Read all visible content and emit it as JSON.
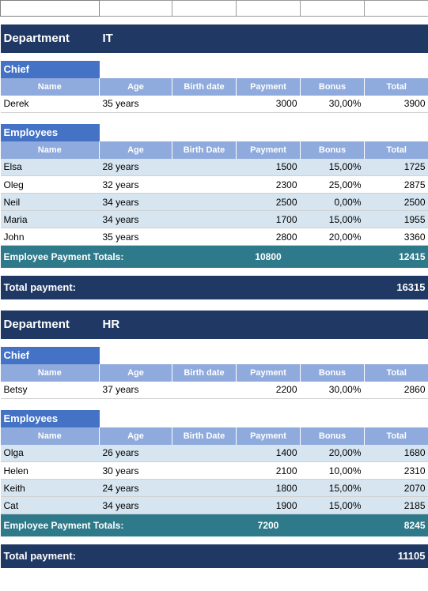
{
  "labels": {
    "department": "Department",
    "chief": "Chief",
    "employees": "Employees",
    "emp_totals": "Employee Payment Totals:",
    "total_payment": "Total payment:"
  },
  "headers_chief": {
    "name": "Name",
    "age": "Age",
    "birth": "Birth date",
    "payment": "Payment",
    "bonus": "Bonus",
    "total": "Total"
  },
  "headers_emp": {
    "name": "Name",
    "age": "Age",
    "birth": "Birth Date",
    "payment": "Payment",
    "bonus": "Bonus",
    "total": "Total"
  },
  "depts": [
    {
      "name": "IT",
      "chief": {
        "name": "Derek",
        "age": "35 years",
        "birth": "",
        "payment": "3000",
        "bonus": "30,00%",
        "total": "3900"
      },
      "employees": [
        {
          "name": "Elsa",
          "age": "28 years",
          "birth": "",
          "payment": "1500",
          "bonus": "15,00%",
          "total": "1725"
        },
        {
          "name": "Oleg",
          "age": "32 years",
          "birth": "",
          "payment": "2300",
          "bonus": "25,00%",
          "total": "2875"
        },
        {
          "name": "Neil",
          "age": "34 years",
          "birth": "",
          "payment": "2500",
          "bonus": "0,00%",
          "total": "2500"
        },
        {
          "name": "Maria",
          "age": "34 years",
          "birth": "",
          "payment": "1700",
          "bonus": "15,00%",
          "total": "1955"
        },
        {
          "name": "John",
          "age": "35 years",
          "birth": "",
          "payment": "2800",
          "bonus": "20,00%",
          "total": "3360"
        }
      ],
      "emp_payment_sum": "10800",
      "emp_total_sum": "12415",
      "total_payment": "16315"
    },
    {
      "name": "HR",
      "chief": {
        "name": "Betsy",
        "age": "37 years",
        "birth": "",
        "payment": "2200",
        "bonus": "30,00%",
        "total": "2860"
      },
      "employees": [
        {
          "name": "Olga",
          "age": "26 years",
          "birth": "",
          "payment": "1400",
          "bonus": "20,00%",
          "total": "1680"
        },
        {
          "name": "Helen",
          "age": "30 years",
          "birth": "",
          "payment": "2100",
          "bonus": "10,00%",
          "total": "2310"
        },
        {
          "name": "Keith",
          "age": "24 years",
          "birth": "",
          "payment": "1800",
          "bonus": "15,00%",
          "total": "2070"
        },
        {
          "name": "Cat",
          "age": "34 years",
          "birth": "",
          "payment": "1900",
          "bonus": "15,00%",
          "total": "2185"
        }
      ],
      "emp_payment_sum": "7200",
      "emp_total_sum": "8245",
      "total_payment": "11105"
    }
  ],
  "colors": {
    "dark_navy": "#1f3864",
    "mid_blue": "#4472c4",
    "light_blue_header": "#8faadc",
    "row_alt": "#d6e5f0",
    "teal": "#2f7a8a"
  }
}
